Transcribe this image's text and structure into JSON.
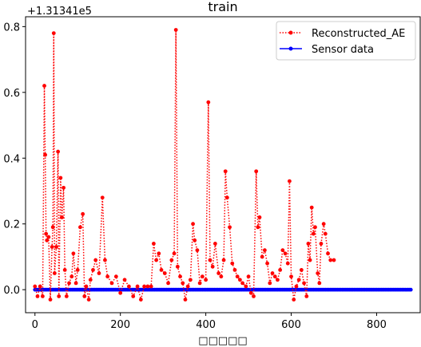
{
  "chart_data": {
    "type": "line",
    "title": "train",
    "xlabel": "□□□□□",
    "ylabel": "",
    "offset_label": "+1.31341e5",
    "y_offset": 131341,
    "xlim": [
      -22,
      902
    ],
    "ylim": [
      -0.07,
      0.83
    ],
    "x_ticks": [
      0,
      200,
      400,
      600,
      800
    ],
    "y_ticks": [
      0.0,
      0.2,
      0.4,
      0.6,
      0.8
    ],
    "x_tick_labels": [
      "0",
      "200",
      "400",
      "600",
      "800"
    ],
    "y_tick_labels": [
      "0.0",
      "0.2",
      "0.4",
      "0.6",
      "0.8"
    ],
    "legend_position": "upper-right",
    "grid": false,
    "series": [
      {
        "name": "Reconstructed_AE",
        "color": "#ff0000",
        "style": "dotted",
        "marker": "circle",
        "x_range": [
          0,
          700
        ],
        "points": [
          [
            0,
            0.01
          ],
          [
            6,
            -0.02
          ],
          [
            12,
            0.01
          ],
          [
            18,
            -0.02
          ],
          [
            22,
            0.62
          ],
          [
            24,
            0.41
          ],
          [
            26,
            0.17
          ],
          [
            28,
            0.15
          ],
          [
            32,
            0.16
          ],
          [
            36,
            -0.03
          ],
          [
            40,
            0.13
          ],
          [
            42,
            0.19
          ],
          [
            44,
            0.78
          ],
          [
            46,
            0.05
          ],
          [
            50,
            0.13
          ],
          [
            54,
            0.42
          ],
          [
            56,
            -0.02
          ],
          [
            60,
            0.34
          ],
          [
            63,
            0.22
          ],
          [
            67,
            0.31
          ],
          [
            70,
            0.06
          ],
          [
            74,
            -0.02
          ],
          [
            80,
            0.02
          ],
          [
            86,
            0.04
          ],
          [
            90,
            0.11
          ],
          [
            96,
            0.02
          ],
          [
            100,
            0.06
          ],
          [
            106,
            0.19
          ],
          [
            112,
            0.23
          ],
          [
            116,
            -0.02
          ],
          [
            120,
            0.01
          ],
          [
            126,
            -0.03
          ],
          [
            130,
            0.03
          ],
          [
            136,
            0.06
          ],
          [
            142,
            0.09
          ],
          [
            150,
            0.05
          ],
          [
            158,
            0.28
          ],
          [
            164,
            0.09
          ],
          [
            170,
            0.04
          ],
          [
            180,
            0.02
          ],
          [
            190,
            0.04
          ],
          [
            200,
            -0.01
          ],
          [
            210,
            0.03
          ],
          [
            220,
            0.01
          ],
          [
            230,
            -0.02
          ],
          [
            240,
            0.01
          ],
          [
            248,
            -0.03
          ],
          [
            256,
            0.01
          ],
          [
            264,
            0.01
          ],
          [
            272,
            0.01
          ],
          [
            278,
            0.14
          ],
          [
            284,
            0.09
          ],
          [
            290,
            0.11
          ],
          [
            296,
            0.06
          ],
          [
            304,
            0.05
          ],
          [
            312,
            0.02
          ],
          [
            320,
            0.09
          ],
          [
            326,
            0.11
          ],
          [
            330,
            0.79
          ],
          [
            334,
            0.07
          ],
          [
            340,
            0.04
          ],
          [
            346,
            0.02
          ],
          [
            352,
            -0.03
          ],
          [
            358,
            0.01
          ],
          [
            364,
            0.03
          ],
          [
            370,
            0.2
          ],
          [
            374,
            0.15
          ],
          [
            380,
            0.12
          ],
          [
            386,
            0.02
          ],
          [
            392,
            0.04
          ],
          [
            400,
            0.03
          ],
          [
            406,
            0.57
          ],
          [
            410,
            0.09
          ],
          [
            416,
            0.07
          ],
          [
            422,
            0.14
          ],
          [
            430,
            0.05
          ],
          [
            436,
            0.04
          ],
          [
            442,
            0.09
          ],
          [
            446,
            0.36
          ],
          [
            450,
            0.28
          ],
          [
            456,
            0.19
          ],
          [
            462,
            0.08
          ],
          [
            468,
            0.06
          ],
          [
            474,
            0.04
          ],
          [
            480,
            0.03
          ],
          [
            486,
            0.02
          ],
          [
            494,
            0.01
          ],
          [
            500,
            0.04
          ],
          [
            506,
            -0.01
          ],
          [
            512,
            -0.02
          ],
          [
            518,
            0.36
          ],
          [
            522,
            0.19
          ],
          [
            526,
            0.22
          ],
          [
            532,
            0.1
          ],
          [
            538,
            0.12
          ],
          [
            544,
            0.08
          ],
          [
            550,
            0.02
          ],
          [
            556,
            0.05
          ],
          [
            562,
            0.04
          ],
          [
            568,
            0.03
          ],
          [
            574,
            0.06
          ],
          [
            580,
            0.12
          ],
          [
            586,
            0.11
          ],
          [
            592,
            0.08
          ],
          [
            596,
            0.33
          ],
          [
            600,
            0.04
          ],
          [
            606,
            -0.03
          ],
          [
            612,
            0.01
          ],
          [
            618,
            0.03
          ],
          [
            624,
            0.06
          ],
          [
            630,
            0.02
          ],
          [
            636,
            -0.02
          ],
          [
            640,
            0.14
          ],
          [
            644,
            0.09
          ],
          [
            648,
            0.25
          ],
          [
            652,
            0.17
          ],
          [
            656,
            0.19
          ],
          [
            662,
            0.05
          ],
          [
            666,
            0.02
          ],
          [
            670,
            0.14
          ],
          [
            676,
            0.2
          ],
          [
            680,
            0.17
          ],
          [
            686,
            0.11
          ],
          [
            692,
            0.09
          ],
          [
            700,
            0.09
          ]
        ]
      },
      {
        "name": "Sensor data",
        "color": "#0000ff",
        "style": "solid",
        "marker": "circle",
        "x_range": [
          0,
          880
        ],
        "constant_value": 0.0
      }
    ]
  }
}
